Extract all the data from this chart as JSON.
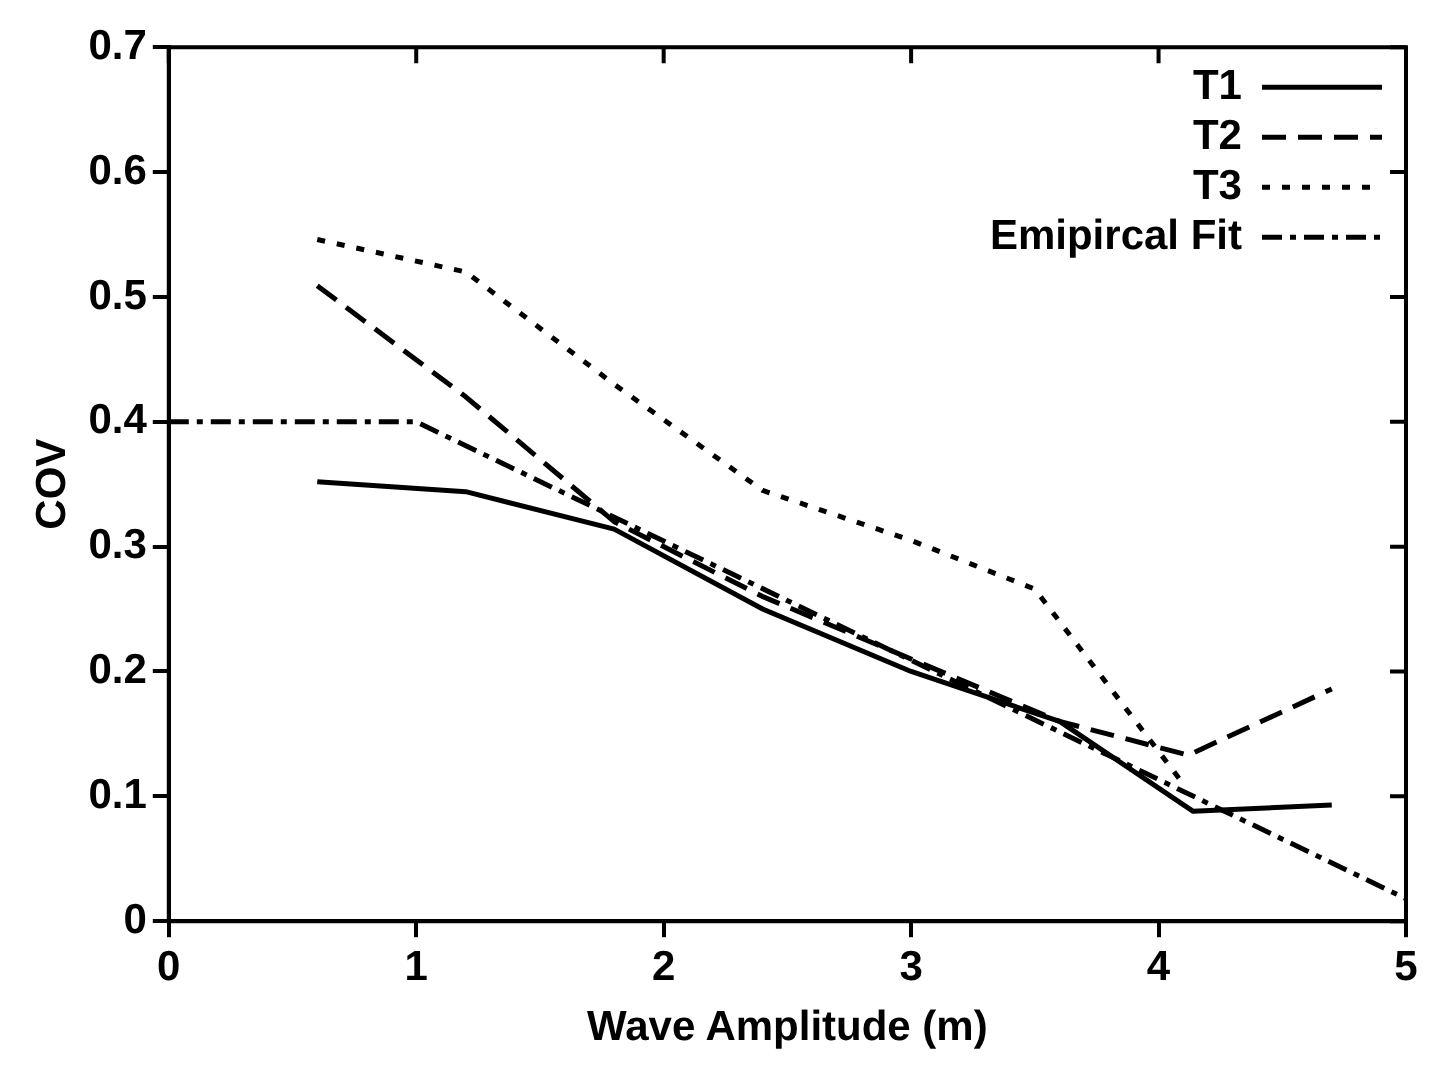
{
  "chart_data": {
    "type": "line",
    "xlabel": "Wave Amplitude (m)",
    "ylabel": "COV",
    "xlim": [
      0,
      5
    ],
    "xticks": [
      0,
      1,
      2,
      3,
      4,
      5
    ],
    "ylim": [
      0,
      0.7
    ],
    "yticks": [
      0,
      0.1,
      0.2,
      0.3,
      0.4,
      0.5,
      0.6,
      0.7
    ],
    "grid": false,
    "legend": "top right",
    "marker": "none",
    "series": [
      {
        "name": "T1",
        "color": "#000000",
        "line_style": "solid",
        "x": [
          0.6,
          1.2,
          1.8,
          2.4,
          3.0,
          3.6,
          4.14,
          4.7
        ],
        "values": [
          0.352,
          0.344,
          0.314,
          0.25,
          0.2,
          0.16,
          0.088,
          0.093
        ]
      },
      {
        "name": "T2",
        "color": "#000000",
        "line_style": "dashed",
        "x": [
          0.6,
          1.2,
          1.8,
          2.4,
          3.0,
          3.6,
          4.12,
          4.7
        ],
        "values": [
          0.509,
          0.42,
          0.32,
          0.26,
          0.21,
          0.16,
          0.133,
          0.186
        ]
      },
      {
        "name": "T3",
        "color": "#000000",
        "line_style": "dotted",
        "x": [
          0.6,
          1.2,
          1.8,
          2.4,
          3.0,
          3.5,
          4.1
        ],
        "values": [
          0.546,
          0.52,
          0.43,
          0.345,
          0.305,
          0.266,
          0.11
        ]
      },
      {
        "name": "Emipircal Fit",
        "color": "#000000",
        "line_style": "dashdot",
        "x": [
          0,
          1.0,
          5.0
        ],
        "values": [
          0.4,
          0.4,
          0.018
        ]
      }
    ]
  }
}
